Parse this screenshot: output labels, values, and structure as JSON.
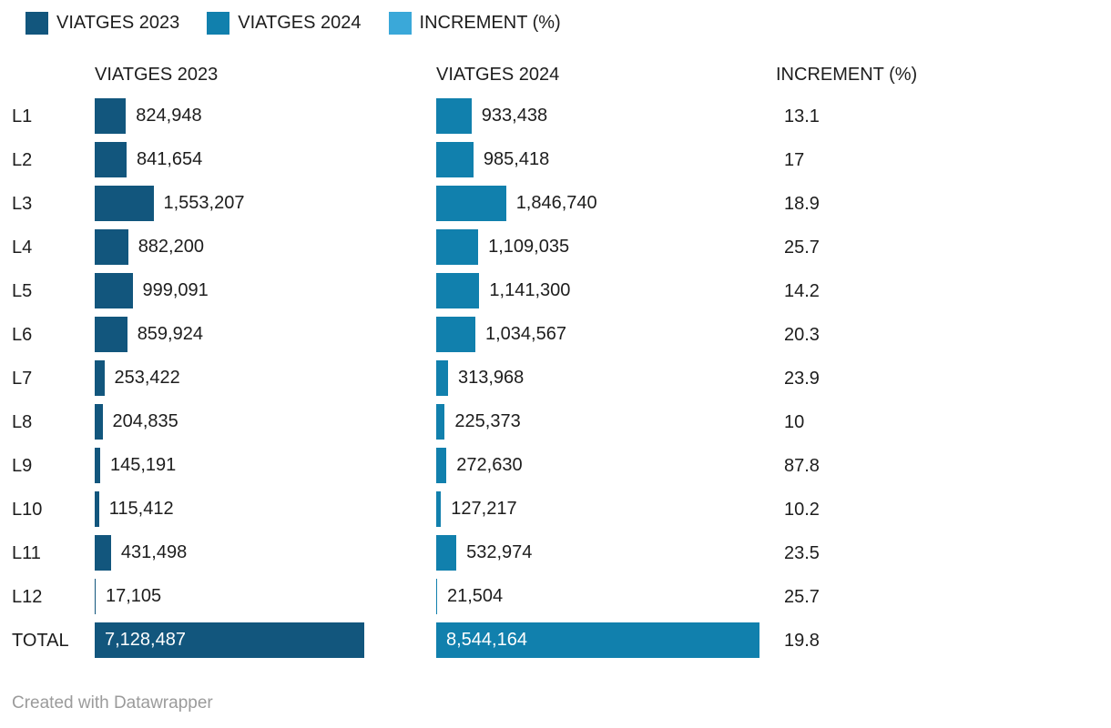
{
  "legend": {
    "items": [
      {
        "label": "VIATGES 2023",
        "color": "#12567d"
      },
      {
        "label": "VIATGES 2024",
        "color": "#1180ad"
      },
      {
        "label": "INCREMENT (%)",
        "color": "#3aa8d9"
      }
    ]
  },
  "footer": {
    "text": "Created with Datawrapper"
  },
  "colors": {
    "viatges_2023": "#12567d",
    "viatges_2024": "#1180ad",
    "increment": "#3aa8d9",
    "text": "#1d1d1d",
    "footer_text": "#9b9b9b",
    "bar_inner_label": "#ffffff"
  },
  "chart_data": {
    "type": "bar",
    "orientation": "horizontal",
    "title": "",
    "columns": [
      "VIATGES 2023",
      "VIATGES 2024",
      "INCREMENT (%)"
    ],
    "categories": [
      "L1",
      "L2",
      "L3",
      "L4",
      "L5",
      "L6",
      "L7",
      "L8",
      "L9",
      "L10",
      "L11",
      "L12",
      "TOTAL"
    ],
    "total_category": "TOTAL",
    "series": [
      {
        "name": "VIATGES 2023",
        "color": "#12567d",
        "values": [
          824948,
          841654,
          1553207,
          882200,
          999091,
          859924,
          253422,
          204835,
          145191,
          115412,
          431498,
          17105,
          7128487
        ],
        "labels": [
          "824,948",
          "841,654",
          "1,553,207",
          "882,200",
          "999,091",
          "859,924",
          "253,422",
          "204,835",
          "145,191",
          "115,412",
          "431,498",
          "17,105",
          "7,128,487"
        ]
      },
      {
        "name": "VIATGES 2024",
        "color": "#1180ad",
        "values": [
          933438,
          985418,
          1846740,
          1109035,
          1141300,
          1034567,
          313968,
          225373,
          272630,
          127217,
          532974,
          21504,
          8544164
        ],
        "labels": [
          "933,438",
          "985,418",
          "1,846,740",
          "1,109,035",
          "1,141,300",
          "1,034,567",
          "313,968",
          "225,373",
          "272,630",
          "127,217",
          "532,974",
          "21,504",
          "8,544,164"
        ]
      },
      {
        "name": "INCREMENT (%)",
        "color": "#3aa8d9",
        "values": [
          13.1,
          17,
          18.9,
          25.7,
          14.2,
          20.3,
          23.9,
          10,
          87.8,
          10.2,
          23.5,
          25.7,
          19.8
        ],
        "labels": [
          "13.1",
          "17",
          "18.9",
          "25.7",
          "14.2",
          "20.3",
          "23.9",
          "10",
          "87.8",
          "10.2",
          "23.5",
          "25.7",
          "19.8"
        ]
      }
    ],
    "layout_hints": {
      "legend_position": "top",
      "axes_hidden": true,
      "value_labels": "outside_end",
      "total_row_value_labels": "inside_start",
      "increment_column_has_bars": false
    }
  }
}
